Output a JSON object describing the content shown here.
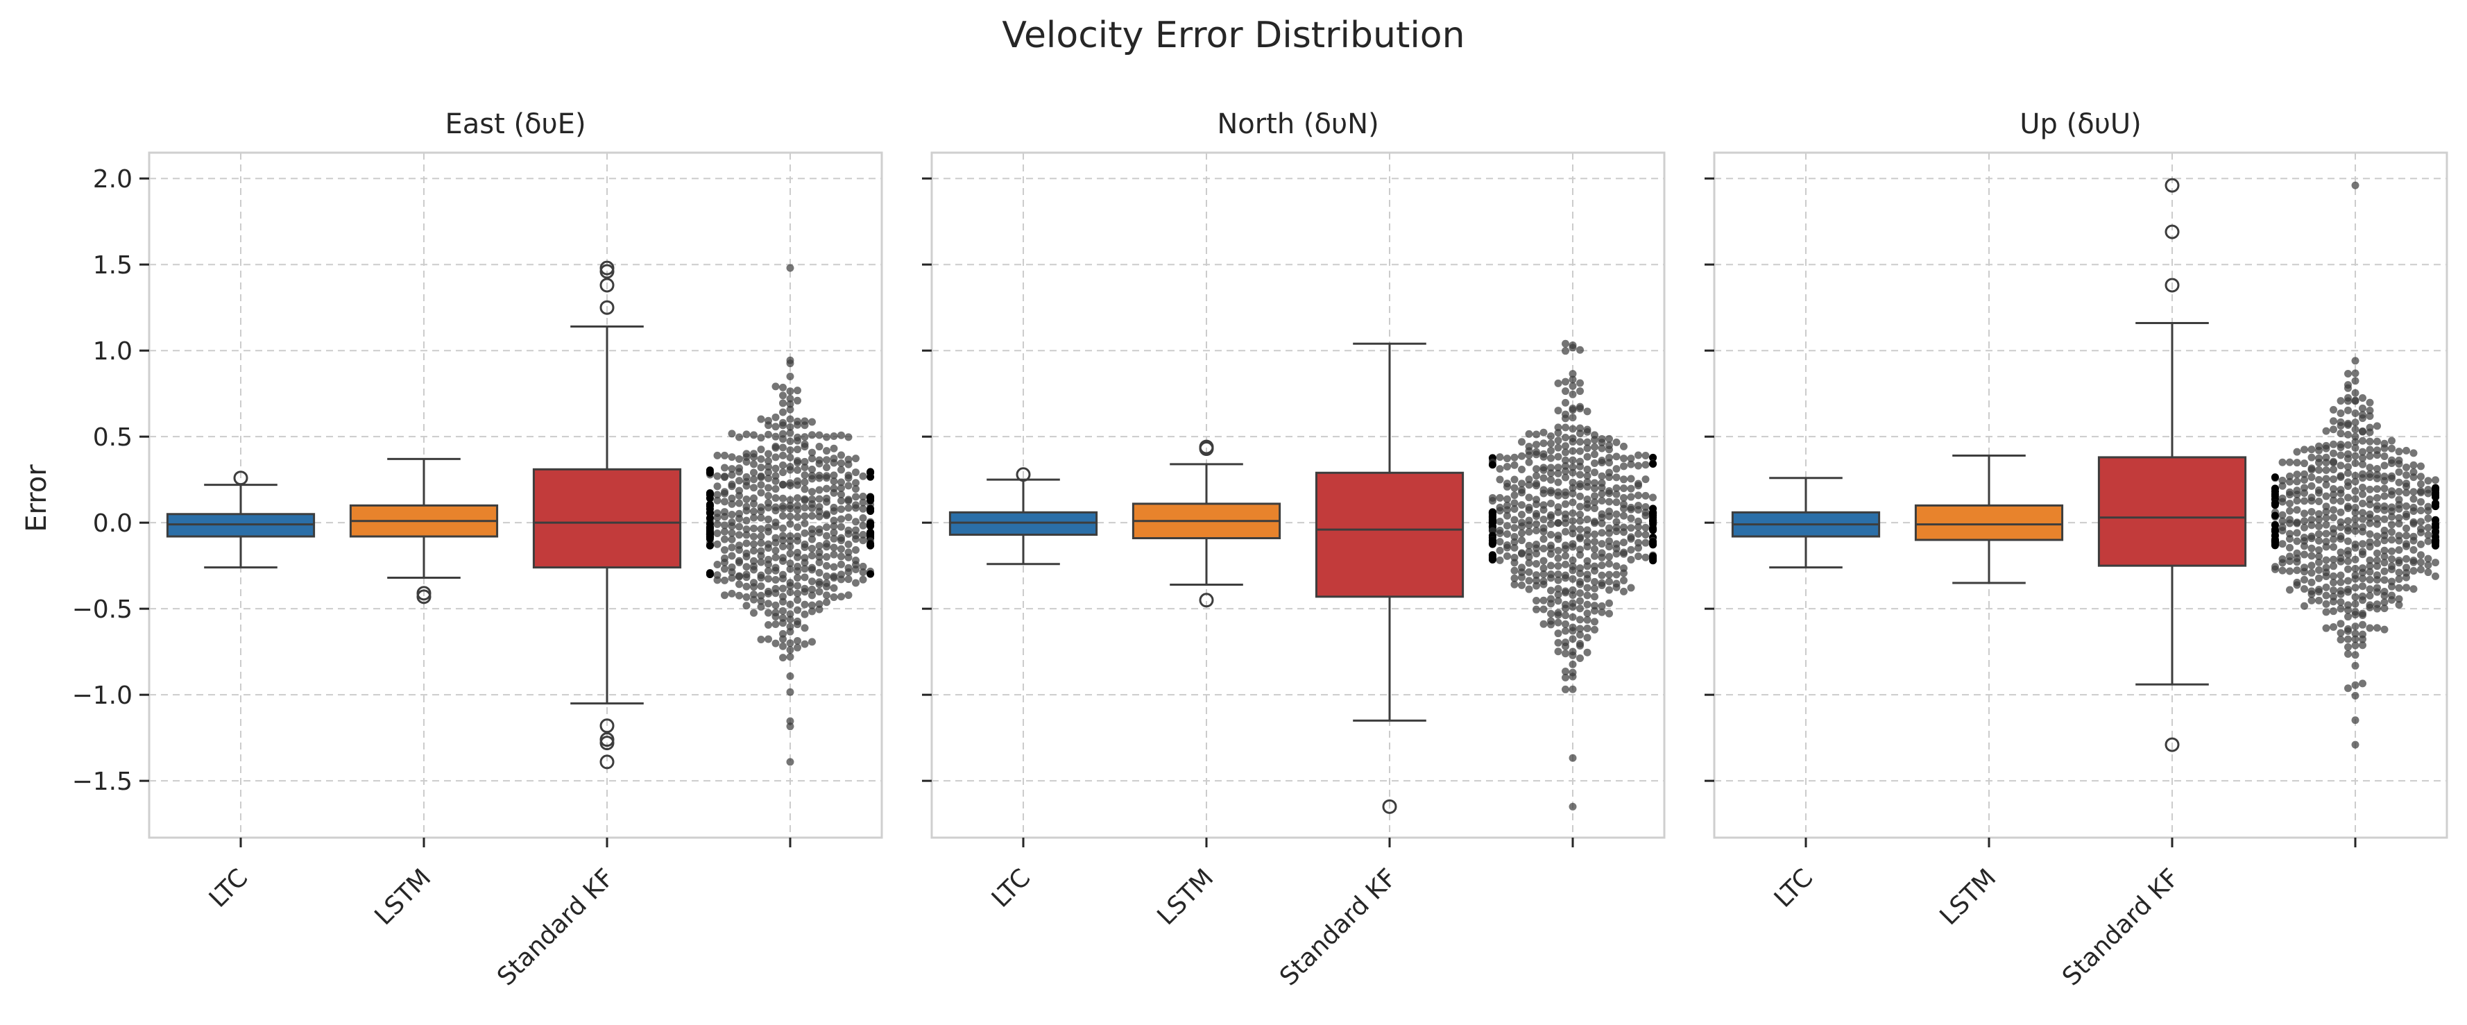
{
  "chart_data": {
    "type": "box",
    "title": "Velocity Error Distribution",
    "ylabel": "Error",
    "ylim": [
      -1.83,
      2.15
    ],
    "yticks": [
      2.0,
      1.5,
      1.0,
      0.5,
      0.0,
      -0.5,
      -1.0,
      -1.5
    ],
    "ytick_labels": [
      "2.0",
      "1.5",
      "1.0",
      "0.5",
      "0.0",
      "−0.5",
      "−1.0",
      "−1.5"
    ],
    "categories": [
      "LTC",
      "LSTM",
      "Standard KF",
      ""
    ],
    "grid": true,
    "colors": {
      "LTC": "#2b6fa8",
      "LSTM": "#e8832c",
      "Standard KF": "#c23b3b",
      "swarm": "#3a3a3a",
      "grid": "#cccccc",
      "frame": "#cfcfcf"
    },
    "panels": [
      {
        "title": "East (δυE)",
        "boxes": [
          {
            "name": "LTC",
            "q1": -0.08,
            "median": -0.01,
            "q3": 0.05,
            "whislo": -0.26,
            "whishi": 0.22,
            "fliers": [
              0.26
            ]
          },
          {
            "name": "LSTM",
            "q1": -0.08,
            "median": 0.01,
            "q3": 0.1,
            "whislo": -0.32,
            "whishi": 0.37,
            "fliers": [
              -0.41,
              -0.43
            ]
          },
          {
            "name": "Standard KF",
            "q1": -0.26,
            "median": 0.0,
            "q3": 0.31,
            "whislo": -1.05,
            "whishi": 1.14,
            "fliers": [
              1.48,
              1.46,
              1.38,
              1.25,
              -1.18,
              -1.26,
              -1.28,
              -1.39
            ]
          }
        ],
        "swarm": {
          "min": -1.39,
          "max": 1.48
        }
      },
      {
        "title": "North (δυN)",
        "boxes": [
          {
            "name": "LTC",
            "q1": -0.07,
            "median": 0.0,
            "q3": 0.06,
            "whislo": -0.24,
            "whishi": 0.25,
            "fliers": [
              0.28
            ]
          },
          {
            "name": "LSTM",
            "q1": -0.09,
            "median": 0.01,
            "q3": 0.11,
            "whislo": -0.36,
            "whishi": 0.34,
            "fliers": [
              0.43,
              0.44,
              -0.45
            ]
          },
          {
            "name": "Standard KF",
            "q1": -0.43,
            "median": -0.04,
            "q3": 0.29,
            "whislo": -1.15,
            "whishi": 1.04,
            "fliers": [
              -1.65
            ]
          }
        ],
        "swarm": {
          "min": -1.65,
          "max": 1.04
        }
      },
      {
        "title": "Up (δυU)",
        "boxes": [
          {
            "name": "LTC",
            "q1": -0.08,
            "median": -0.01,
            "q3": 0.06,
            "whislo": -0.26,
            "whishi": 0.26,
            "fliers": []
          },
          {
            "name": "LSTM",
            "q1": -0.1,
            "median": -0.01,
            "q3": 0.1,
            "whislo": -0.35,
            "whishi": 0.39,
            "fliers": []
          },
          {
            "name": "Standard KF",
            "q1": -0.25,
            "median": 0.03,
            "q3": 0.38,
            "whislo": -0.94,
            "whishi": 1.16,
            "fliers": [
              1.96,
              1.69,
              1.38,
              -1.29
            ]
          }
        ],
        "swarm": {
          "min": -1.29,
          "max": 1.96
        }
      }
    ]
  }
}
